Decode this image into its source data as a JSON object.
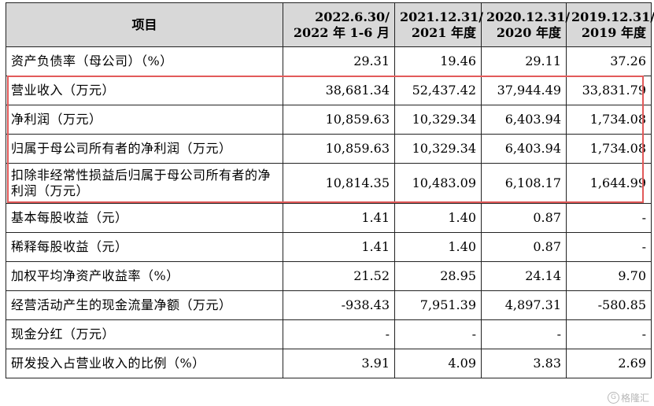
{
  "table": {
    "header": {
      "item": "项目",
      "cols": [
        {
          "line1": "2022.6.30/",
          "line2": "2022 年 1-6 月"
        },
        {
          "line1": "2021.12.31/",
          "line2": "2021 年度"
        },
        {
          "line1": "2020.12.31/",
          "line2": "2020 年度"
        },
        {
          "line1": "2019.12.31/",
          "line2": "2019 年度"
        }
      ]
    },
    "rows": [
      {
        "label": "资产负债率（母公司）（%）",
        "values": [
          "29.31",
          "19.46",
          "29.11",
          "37.26"
        ]
      },
      {
        "label": "营业收入（万元）",
        "values": [
          "38,681.34",
          "52,437.42",
          "37,944.49",
          "33,831.79"
        ]
      },
      {
        "label": "净利润（万元）",
        "values": [
          "10,859.63",
          "10,329.34",
          "6,403.94",
          "1,734.08"
        ]
      },
      {
        "label": "归属于母公司所有者的净利润（万元）",
        "values": [
          "10,859.63",
          "10,329.34",
          "6,403.94",
          "1,734.08"
        ]
      },
      {
        "label": "扣除非经常性损益后归属于母公司所有者的净利润（万元）",
        "values": [
          "10,814.35",
          "10,483.09",
          "6,108.17",
          "1,644.99"
        ]
      },
      {
        "label": "基本每股收益（元）",
        "values": [
          "1.41",
          "1.40",
          "0.87",
          "-"
        ]
      },
      {
        "label": "稀释每股收益（元）",
        "values": [
          "1.41",
          "1.40",
          "0.87",
          "-"
        ]
      },
      {
        "label": "加权平均净资产收益率（%）",
        "values": [
          "21.52",
          "28.95",
          "24.14",
          "9.70"
        ]
      },
      {
        "label": "经营活动产生的现金流量净额（万元）",
        "values": [
          "-938.43",
          "7,951.39",
          "4,897.31",
          "-580.85"
        ]
      },
      {
        "label": "现金分红（万元）",
        "values": [
          "-",
          "-",
          "-",
          "-"
        ]
      },
      {
        "label": "研发投入占营业收入的比例（%）",
        "values": [
          "3.91",
          "4.09",
          "3.83",
          "2.69"
        ]
      }
    ]
  },
  "highlight_color": "#e25a5a",
  "watermark": {
    "icon": "g-logo-icon",
    "text": "格隆汇"
  }
}
